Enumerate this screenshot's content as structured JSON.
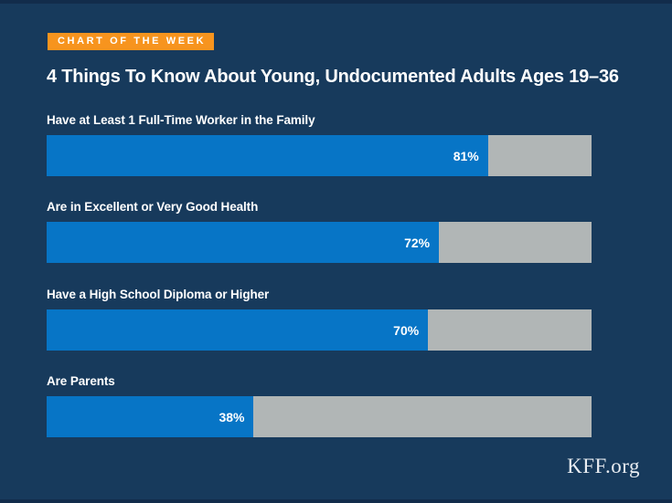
{
  "badge": {
    "label": "CHART OF THE WEEK"
  },
  "title": "4 Things To Know About Young, Undocumented Adults Ages 19–36",
  "footer": {
    "brand": "KFF.org"
  },
  "colors": {
    "background": "#173a5c",
    "edge_strip": "#122c4b",
    "badge_orange": "#f7941e",
    "bar_blue": "#0775c6",
    "bar_track_gray": "#b1b6b6",
    "text": "#ffffff"
  },
  "chart_data": {
    "type": "bar",
    "orientation": "horizontal",
    "title": "4 Things To Know About Young, Undocumented Adults Ages 19–36",
    "xlim": [
      0,
      100
    ],
    "unit": "%",
    "grid": false,
    "legend": false,
    "categories": [
      "Have at Least 1 Full-Time Worker in the Family",
      "Are in Excellent or Very Good Health",
      "Have a High School Diploma or Higher",
      "Are Parents"
    ],
    "values": [
      81,
      72,
      70,
      38
    ],
    "rows": [
      {
        "label": "Have at Least 1 Full-Time Worker in the Family",
        "value": 81,
        "value_label": "81%"
      },
      {
        "label": "Are in Excellent or Very Good Health",
        "value": 72,
        "value_label": "72%"
      },
      {
        "label": "Have a High School Diploma or Higher",
        "value": 70,
        "value_label": "70%"
      },
      {
        "label": "Are Parents",
        "value": 38,
        "value_label": "38%"
      }
    ]
  }
}
